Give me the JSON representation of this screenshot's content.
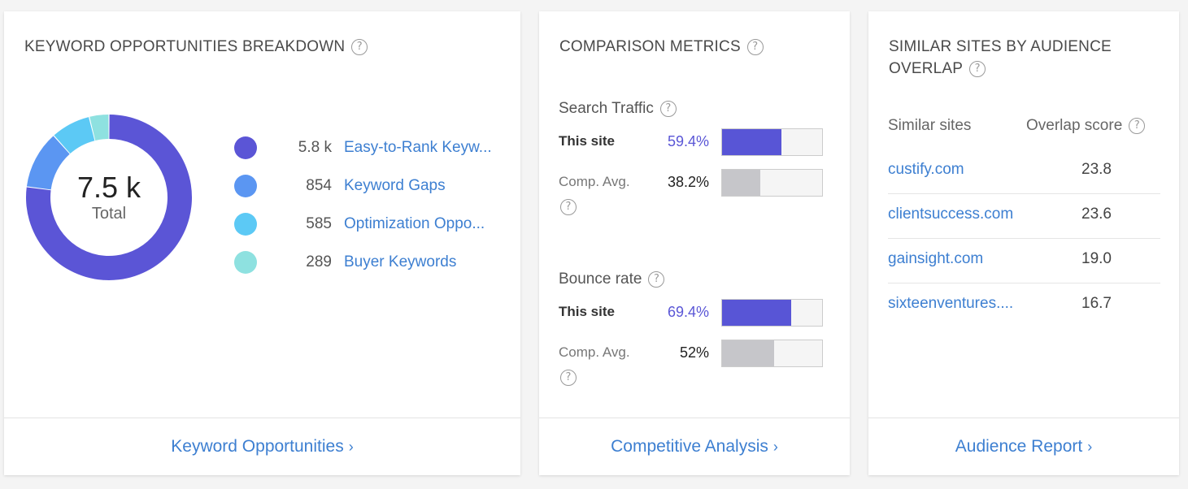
{
  "keyword_card": {
    "title": "KEYWORD OPPORTUNITIES BREAKDOWN",
    "total_value": "7.5 k",
    "total_label": "Total",
    "items": [
      {
        "count": "5.8 k",
        "label": "Easy-to-Rank Keyw...",
        "value": 5800,
        "color": "#5b55d6"
      },
      {
        "count": "854",
        "label": "Keyword Gaps",
        "value": 854,
        "color": "#5b96f2"
      },
      {
        "count": "585",
        "label": "Optimization Oppo...",
        "value": 585,
        "color": "#5cc9f5"
      },
      {
        "count": "289",
        "label": "Buyer Keywords",
        "value": 289,
        "color": "#8ee1e0"
      }
    ],
    "footer": "Keyword Opportunities",
    "chevron": "›"
  },
  "comparison_card": {
    "title": "COMPARISON METRICS",
    "metrics": [
      {
        "label": "Search Traffic",
        "site_name": "This site",
        "site_pct": "59.4%",
        "site_value": 0.594,
        "avg_name": "Comp. Avg.",
        "avg_pct": "38.2%",
        "avg_value": 0.382
      },
      {
        "label": "Bounce rate",
        "site_name": "This site",
        "site_pct": "69.4%",
        "site_value": 0.694,
        "avg_name": "Comp. Avg.",
        "avg_pct": "52%",
        "avg_value": 0.52
      }
    ],
    "site_color": "#5855d6",
    "avg_color": "#c6c6ca",
    "footer": "Competitive Analysis",
    "chevron": "›"
  },
  "similar_card": {
    "title_line1": "SIMILAR SITES BY AUDIENCE",
    "title_line2": "OVERLAP",
    "col_site": "Similar sites",
    "col_score": "Overlap score",
    "rows": [
      {
        "site": "custify.com",
        "score": "23.8"
      },
      {
        "site": "clientsuccess.com",
        "score": "23.6"
      },
      {
        "site": "gainsight.com",
        "score": "19.0"
      },
      {
        "site": "sixteenventures....",
        "score": "16.7"
      }
    ],
    "footer": "Audience Report",
    "chevron": "›"
  },
  "help_glyph": "?"
}
